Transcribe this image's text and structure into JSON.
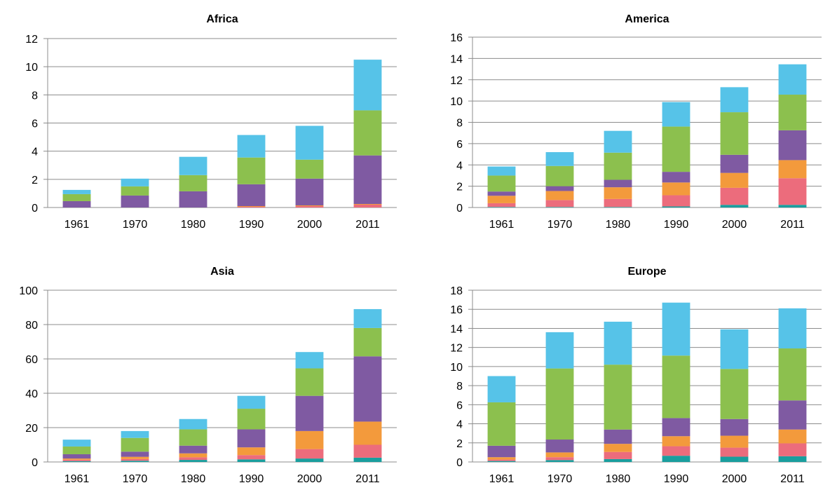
{
  "palette": {
    "s1": "#1a9e9e",
    "s2": "#ec6c7c",
    "s3": "#f39a3c",
    "s4": "#7f5aa2",
    "s5": "#8cc04e",
    "s6": "#56c3e8"
  },
  "chart_data": [
    {
      "type": "bar",
      "stacked": true,
      "title": "Africa",
      "categories": [
        "1961",
        "1970",
        "1980",
        "1990",
        "2000",
        "2011"
      ],
      "ylim": [
        0,
        12
      ],
      "yticks": [
        "0",
        "2",
        "4",
        "6",
        "8",
        "10",
        "12"
      ],
      "grid": true,
      "series": [
        {
          "values": [
            0.0,
            0.0,
            0.0,
            0.0,
            0.0,
            0.0
          ],
          "color": "#1a9e9e"
        },
        {
          "values": [
            0.0,
            0.0,
            0.0,
            0.05,
            0.1,
            0.2
          ],
          "color": "#ec6c7c"
        },
        {
          "values": [
            0.0,
            0.0,
            0.0,
            0.05,
            0.05,
            0.05
          ],
          "color": "#f39a3c"
        },
        {
          "values": [
            0.45,
            0.85,
            1.15,
            1.55,
            1.9,
            3.45
          ],
          "color": "#7f5aa2"
        },
        {
          "values": [
            0.5,
            0.65,
            1.15,
            1.9,
            1.35,
            3.2
          ],
          "color": "#8cc04e"
        },
        {
          "values": [
            0.3,
            0.55,
            1.3,
            1.6,
            2.4,
            3.6
          ],
          "color": "#56c3e8"
        }
      ]
    },
    {
      "type": "bar",
      "stacked": true,
      "title": "America",
      "categories": [
        "1961",
        "1970",
        "1980",
        "1990",
        "2000",
        "2011"
      ],
      "ylim": [
        0,
        16
      ],
      "yticks": [
        "0",
        "2",
        "4",
        "6",
        "8",
        "10",
        "12",
        "14",
        "16"
      ],
      "grid": true,
      "series": [
        {
          "values": [
            0.05,
            0.05,
            0.05,
            0.1,
            0.25,
            0.25
          ],
          "color": "#1a9e9e"
        },
        {
          "values": [
            0.35,
            0.65,
            0.75,
            1.05,
            1.6,
            2.5
          ],
          "color": "#ec6c7c"
        },
        {
          "values": [
            0.7,
            0.85,
            1.1,
            1.2,
            1.4,
            1.7
          ],
          "color": "#f39a3c"
        },
        {
          "values": [
            0.4,
            0.45,
            0.7,
            1.0,
            1.7,
            2.8
          ],
          "color": "#7f5aa2"
        },
        {
          "values": [
            1.5,
            1.9,
            2.55,
            4.25,
            4.0,
            3.35
          ],
          "color": "#8cc04e"
        },
        {
          "values": [
            0.85,
            1.3,
            2.05,
            2.3,
            2.35,
            2.85
          ],
          "color": "#56c3e8"
        }
      ]
    },
    {
      "type": "bar",
      "stacked": true,
      "title": "Asia",
      "categories": [
        "1961",
        "1970",
        "1980",
        "1990",
        "2000",
        "2011"
      ],
      "ylim": [
        0,
        100
      ],
      "yticks": [
        "0",
        "20",
        "40",
        "60",
        "80",
        "100"
      ],
      "grid": true,
      "series": [
        {
          "values": [
            0.5,
            0.7,
            1.2,
            1.5,
            2.0,
            2.5
          ],
          "color": "#1a9e9e"
        },
        {
          "values": [
            0.8,
            1.0,
            1.5,
            2.5,
            5.5,
            7.5
          ],
          "color": "#ec6c7c"
        },
        {
          "values": [
            0.7,
            1.3,
            2.3,
            4.5,
            10.5,
            13.5
          ],
          "color": "#f39a3c"
        },
        {
          "values": [
            2.5,
            3.0,
            4.5,
            10.5,
            20.5,
            38.0
          ],
          "color": "#7f5aa2"
        },
        {
          "values": [
            4.5,
            8.0,
            9.5,
            12.0,
            16.0,
            16.5
          ],
          "color": "#8cc04e"
        },
        {
          "values": [
            4.0,
            4.0,
            6.0,
            7.5,
            9.5,
            11.0
          ],
          "color": "#56c3e8"
        }
      ]
    },
    {
      "type": "bar",
      "stacked": true,
      "title": "Europe",
      "categories": [
        "1961",
        "1970",
        "1980",
        "1990",
        "2000",
        "2011"
      ],
      "ylim": [
        0,
        18
      ],
      "yticks": [
        "0",
        "2",
        "4",
        "6",
        "8",
        "10",
        "12",
        "14",
        "16",
        "18"
      ],
      "grid": true,
      "series": [
        {
          "values": [
            0.1,
            0.2,
            0.3,
            0.65,
            0.55,
            0.6
          ],
          "color": "#1a9e9e"
        },
        {
          "values": [
            0.15,
            0.3,
            0.75,
            1.0,
            0.95,
            1.35
          ],
          "color": "#ec6c7c"
        },
        {
          "values": [
            0.25,
            0.5,
            0.85,
            1.05,
            1.25,
            1.45
          ],
          "color": "#f39a3c"
        },
        {
          "values": [
            1.2,
            1.35,
            1.5,
            1.9,
            1.75,
            3.05
          ],
          "color": "#7f5aa2"
        },
        {
          "values": [
            4.55,
            7.45,
            6.8,
            6.55,
            5.25,
            5.45
          ],
          "color": "#8cc04e"
        },
        {
          "values": [
            2.75,
            3.8,
            4.5,
            5.55,
            4.15,
            4.2
          ],
          "color": "#56c3e8"
        }
      ]
    }
  ]
}
